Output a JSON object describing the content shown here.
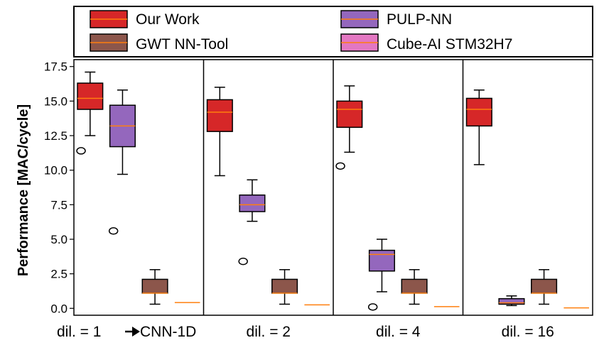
{
  "chart_data": {
    "type": "box",
    "ylabel": "Performance [MAC/cycle]",
    "ylim": [
      -0.5,
      18.0
    ],
    "yticks": [
      "0.0",
      "2.5",
      "5.0",
      "7.5",
      "10.0",
      "12.5",
      "15.0",
      "17.5"
    ],
    "categories": [
      "dil. = 1",
      "dil. = 2",
      "dil. = 4",
      "dil. = 16"
    ],
    "category_note": "CNN-1D",
    "legend": [
      {
        "name": "Our Work",
        "color": "#d62728"
      },
      {
        "name": "PULP-NN",
        "color": "#9467bd"
      },
      {
        "name": "GWT NN-Tool",
        "color": "#8c564b"
      },
      {
        "name": "Cube-AI STM32H7",
        "color": "#e377c2"
      }
    ],
    "median_color": "#ff7f0e",
    "series": [
      {
        "name": "Our Work",
        "color": "#d62728",
        "boxes": [
          {
            "whislo": 12.5,
            "q1": 14.4,
            "med": 15.2,
            "q3": 16.3,
            "whishi": 17.1,
            "fliers": [
              11.4
            ]
          },
          {
            "whislo": 9.6,
            "q1": 12.8,
            "med": 14.2,
            "q3": 15.1,
            "whishi": 16.0,
            "fliers": []
          },
          {
            "whislo": 11.3,
            "q1": 13.1,
            "med": 14.4,
            "q3": 15.0,
            "whishi": 16.1,
            "fliers": [
              10.3
            ]
          },
          {
            "whislo": 10.4,
            "q1": 13.2,
            "med": 14.4,
            "q3": 15.2,
            "whishi": 15.8,
            "fliers": []
          }
        ]
      },
      {
        "name": "PULP-NN",
        "color": "#9467bd",
        "boxes": [
          {
            "whislo": 9.7,
            "q1": 11.7,
            "med": 13.2,
            "q3": 14.7,
            "whishi": 15.8,
            "fliers": [
              5.6
            ]
          },
          {
            "whislo": 6.3,
            "q1": 7.0,
            "med": 7.5,
            "q3": 8.2,
            "whishi": 9.3,
            "fliers": [
              3.4
            ]
          },
          {
            "whislo": 1.2,
            "q1": 2.7,
            "med": 3.9,
            "q3": 4.2,
            "whishi": 5.0,
            "fliers": [
              0.1
            ]
          },
          {
            "whislo": 0.2,
            "q1": 0.3,
            "med": 0.4,
            "q3": 0.7,
            "whishi": 0.9,
            "fliers": []
          }
        ]
      },
      {
        "name": "GWT NN-Tool",
        "color": "#8c564b",
        "boxes": [
          {
            "whislo": 0.3,
            "q1": 1.1,
            "med": 1.1,
            "q3": 2.1,
            "whishi": 2.8,
            "fliers": []
          },
          {
            "whislo": 0.3,
            "q1": 1.1,
            "med": 1.1,
            "q3": 2.1,
            "whishi": 2.8,
            "fliers": []
          },
          {
            "whislo": 0.3,
            "q1": 1.1,
            "med": 1.1,
            "q3": 2.1,
            "whishi": 2.8,
            "fliers": []
          },
          {
            "whislo": 0.3,
            "q1": 1.1,
            "med": 1.1,
            "q3": 2.1,
            "whishi": 2.8,
            "fliers": []
          }
        ]
      },
      {
        "name": "Cube-AI STM32H7",
        "color": "#e377c2",
        "boxes": [
          {
            "whislo": 0.42,
            "q1": 0.42,
            "med": 0.42,
            "q3": 0.42,
            "whishi": 0.42,
            "fliers": []
          },
          {
            "whislo": 0.25,
            "q1": 0.25,
            "med": 0.25,
            "q3": 0.25,
            "whishi": 0.25,
            "fliers": []
          },
          {
            "whislo": 0.12,
            "q1": 0.12,
            "med": 0.12,
            "q3": 0.12,
            "whishi": 0.12,
            "fliers": []
          },
          {
            "whislo": 0.03,
            "q1": 0.03,
            "med": 0.03,
            "q3": 0.03,
            "whishi": 0.03,
            "fliers": []
          }
        ]
      }
    ]
  }
}
